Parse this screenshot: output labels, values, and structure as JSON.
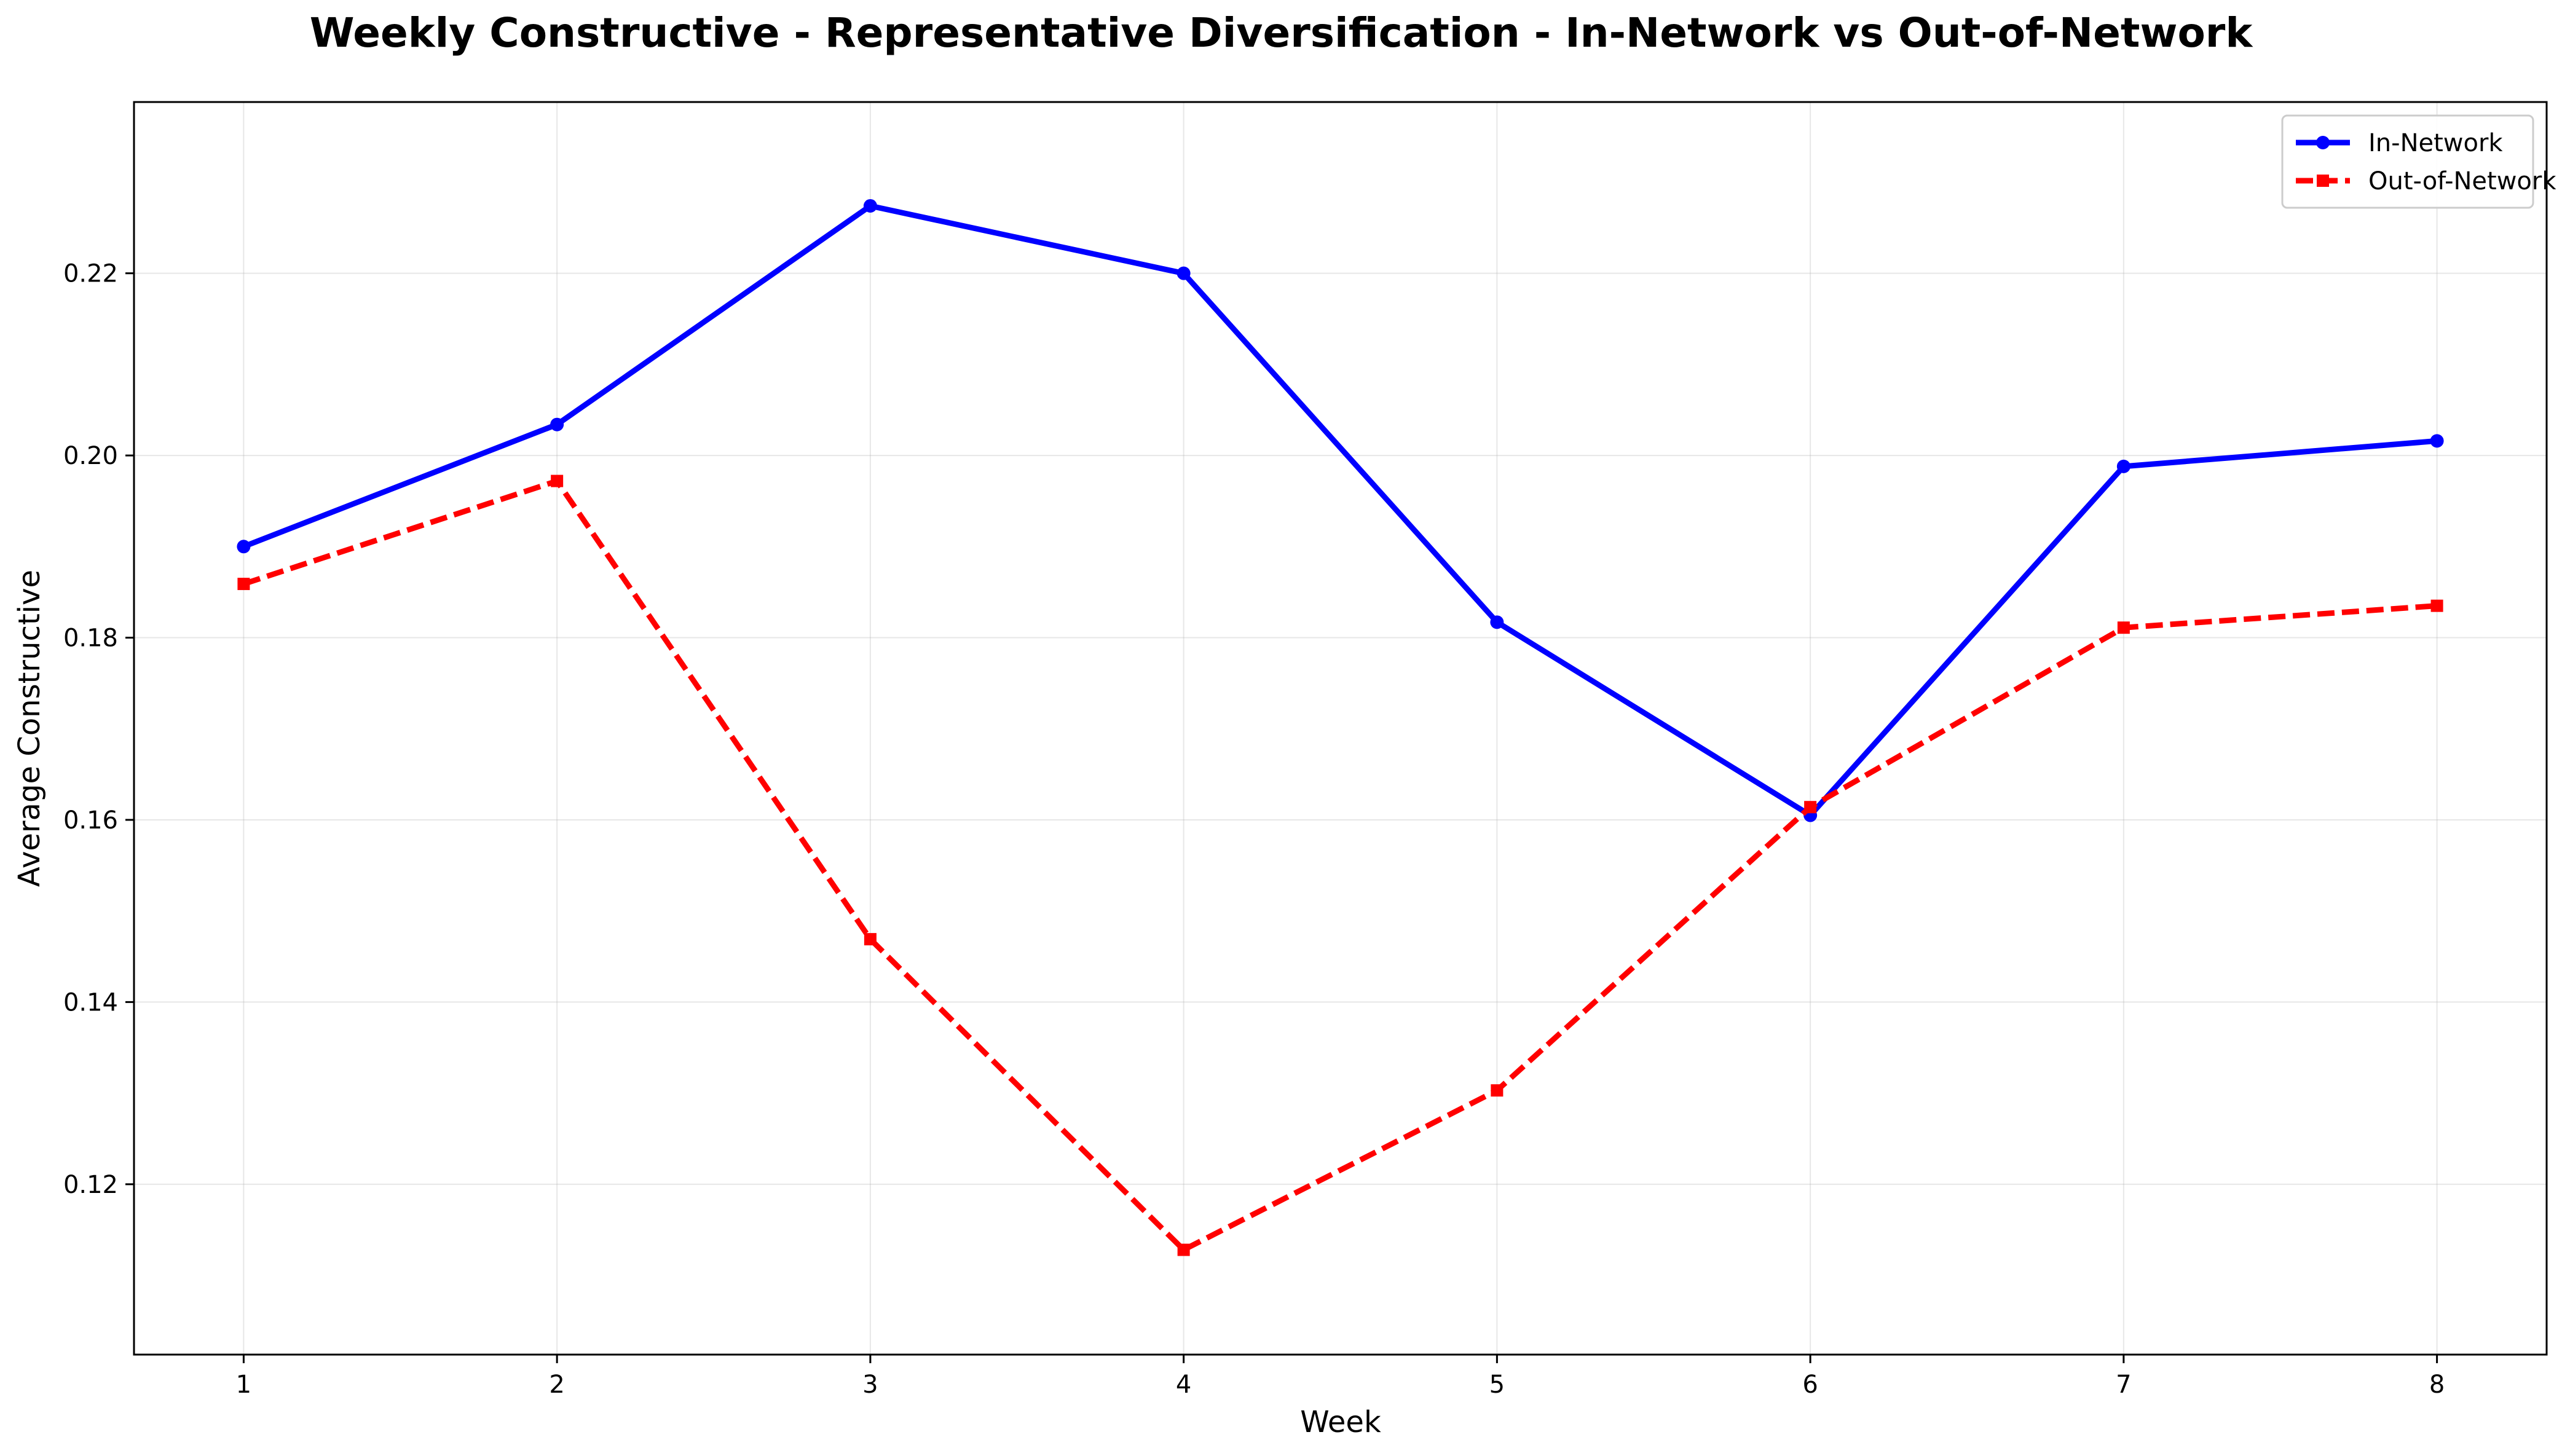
{
  "chart_data": {
    "type": "line",
    "title": "Weekly Constructive - Representative Diversification - In-Network vs Out-of-Network",
    "xlabel": "Week",
    "ylabel": "Average Constructive",
    "x": [
      1,
      2,
      3,
      4,
      5,
      6,
      7,
      8
    ],
    "x_tick_labels": [
      "1",
      "2",
      "3",
      "4",
      "5",
      "6",
      "7",
      "8"
    ],
    "y_ticks": [
      0.12,
      0.14,
      0.16,
      0.18,
      0.2,
      0.22
    ],
    "y_tick_labels": [
      "0.12",
      "0.14",
      "0.16",
      "0.18",
      "0.20",
      "0.22"
    ],
    "xlim": [
      0.65,
      8.35
    ],
    "ylim": [
      0.1013,
      0.2388
    ],
    "grid": true,
    "legend_position": "top-right",
    "series": [
      {
        "name": "In-Network",
        "color": "#0000ff",
        "line_style": "solid",
        "marker": "circle",
        "values": [
          0.19,
          0.2034,
          0.2274,
          0.22,
          0.1817,
          0.1605,
          0.1988,
          0.2016
        ]
      },
      {
        "name": "Out-of-Network",
        "color": "#ff0000",
        "line_style": "dashed",
        "marker": "square",
        "values": [
          0.1859,
          0.1972,
          0.1469,
          0.1128,
          0.1303,
          0.1614,
          0.1811,
          0.1835
        ]
      }
    ]
  }
}
